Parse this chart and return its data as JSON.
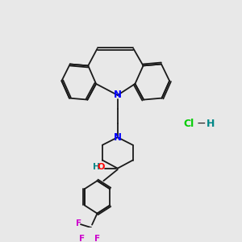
{
  "background_color": "#e8e8e8",
  "bond_color": "#1a1a1a",
  "N_color": "#0000ff",
  "O_color": "#ff0000",
  "F_color": "#cc00cc",
  "Cl_color": "#00cc00",
  "H_color": "#008888",
  "lw": 1.3,
  "db_off": 0.07,
  "figsize": [
    3.0,
    3.0
  ],
  "dpi": 100,
  "xlim": [
    0,
    10
  ],
  "ylim": [
    0,
    10
  ]
}
